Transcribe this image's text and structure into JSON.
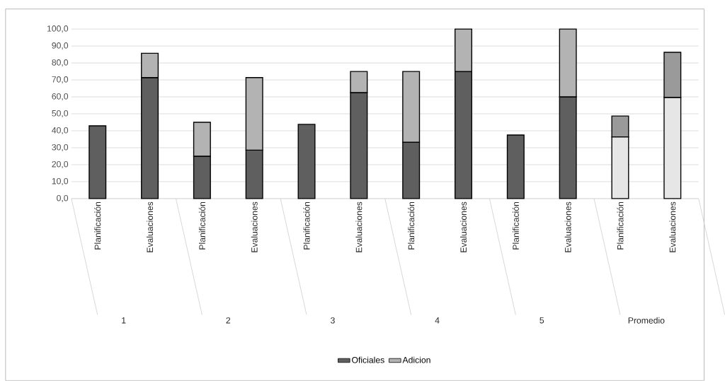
{
  "chart_data": {
    "type": "bar",
    "stacked": true,
    "categories": [
      "Planificación",
      "Evaluaciones",
      "Planificación",
      "Evaluaciones",
      "Planificación",
      "Evaluaciones",
      "Planificación",
      "Evaluaciones",
      "Planificación",
      "Evaluaciones",
      "Planificación",
      "Evaluaciones"
    ],
    "annotations": [
      "1",
      "2",
      "3",
      "4",
      "5",
      "Promedio"
    ],
    "series": [
      {
        "name": "Oficiales",
        "color": "#5f5f5f",
        "colors": [
          "#5f5f5f",
          "#5f5f5f",
          "#5f5f5f",
          "#5f5f5f",
          "#5f5f5f",
          "#5f5f5f",
          "#5f5f5f",
          "#5f5f5f",
          "#5f5f5f",
          "#5f5f5f",
          "#e6e6e6",
          "#e6e6e6"
        ],
        "values": [
          42.9,
          71.4,
          25.0,
          28.6,
          43.8,
          62.5,
          33.3,
          75.0,
          37.5,
          60.0,
          36.4,
          59.7
        ]
      },
      {
        "name": "Adicion",
        "color": "#b3b3b3",
        "colors": [
          "#b3b3b3",
          "#b3b3b3",
          "#b3b3b3",
          "#b3b3b3",
          "#b3b3b3",
          "#b3b3b3",
          "#b3b3b3",
          "#b3b3b3",
          "#b3b3b3",
          "#b3b3b3",
          "#9a9a9a",
          "#9a9a9a"
        ],
        "values": [
          0,
          14.3,
          20.0,
          42.8,
          0,
          12.5,
          41.7,
          25.0,
          0,
          40.0,
          12.3,
          26.6
        ]
      }
    ],
    "ylim": [
      0,
      100
    ],
    "yticks": [
      {
        "value": 0,
        "label": "0,0"
      },
      {
        "value": 10,
        "label": "10,0"
      },
      {
        "value": 20,
        "label": "20,0"
      },
      {
        "value": 30,
        "label": "30,0"
      },
      {
        "value": 40,
        "label": "40,0"
      },
      {
        "value": 50,
        "label": "50,0"
      },
      {
        "value": 60,
        "label": "60,0"
      },
      {
        "value": 70,
        "label": "70,0"
      },
      {
        "value": 80,
        "label": "80,0"
      },
      {
        "value": 90,
        "label": "90,0"
      },
      {
        "value": 100,
        "label": "100,0"
      }
    ],
    "grid": "y",
    "legend": "bottom"
  }
}
